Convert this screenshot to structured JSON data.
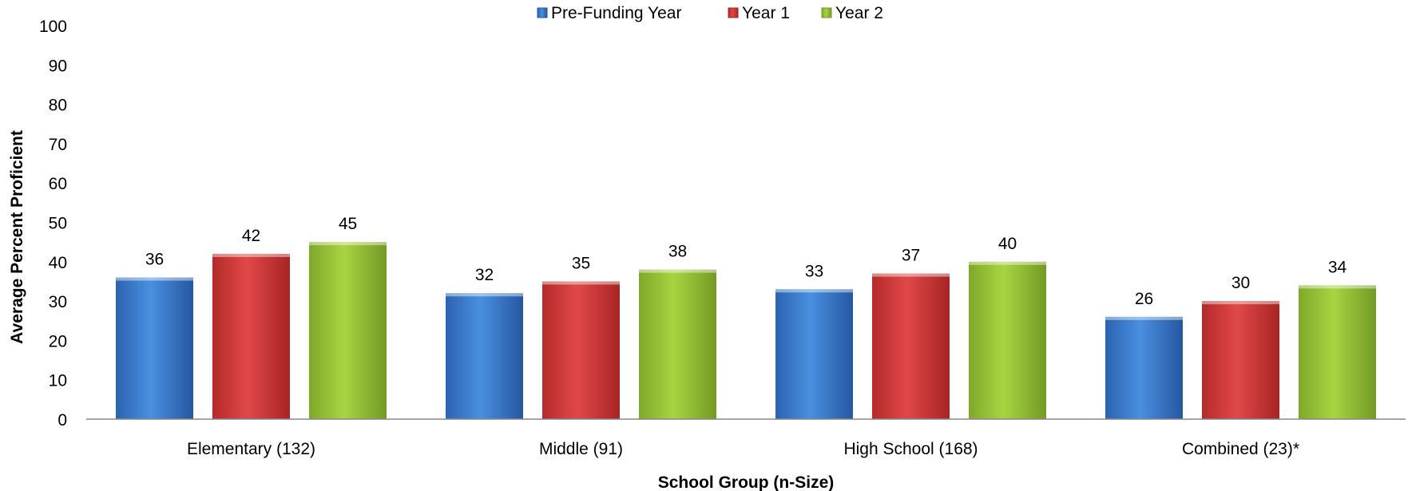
{
  "chart_data": {
    "type": "bar",
    "title": "",
    "xlabel": "School Group (n-Size)",
    "ylabel": "Average Percent Proficient",
    "ylim": [
      0,
      100
    ],
    "yticks": [
      0,
      10,
      20,
      30,
      40,
      50,
      60,
      70,
      80,
      90,
      100
    ],
    "categories": [
      "Elementary (132)",
      "Middle (91)",
      "High School (168)",
      "Combined (23)*"
    ],
    "series": [
      {
        "name": "Pre-Funding Year",
        "values": [
          36,
          32,
          33,
          26
        ],
        "color": "#3f7fd2"
      },
      {
        "name": "Year 1",
        "values": [
          42,
          35,
          37,
          30
        ],
        "color": "#d23a3a"
      },
      {
        "name": "Year 2",
        "values": [
          45,
          38,
          40,
          34
        ],
        "color": "#9bc73a"
      }
    ],
    "legend_position": "top-center",
    "grid": false
  }
}
